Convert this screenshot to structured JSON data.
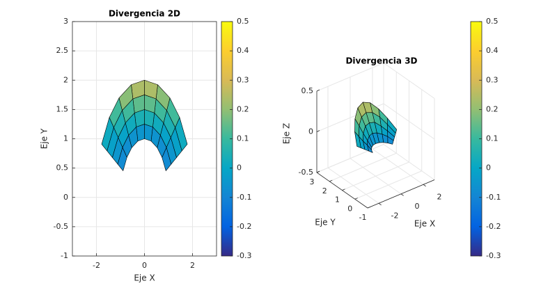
{
  "chart_data": [
    {
      "type": "surface2d",
      "title": "Divergencia 2D",
      "xlabel": "Eje X",
      "ylabel": "Eje Y",
      "xlim": [
        -3,
        3
      ],
      "ylim": [
        -1,
        3
      ],
      "xticks": [
        -2,
        0,
        2
      ],
      "yticks": [
        -1,
        -0.5,
        0,
        0.5,
        1,
        1.5,
        2,
        2.5,
        3
      ],
      "grid": true,
      "r": [
        1,
        1.25,
        1.5,
        1.75,
        2
      ],
      "theta": [
        27,
        43,
        58,
        74,
        90,
        106,
        122,
        137,
        153
      ],
      "z": [
        [
          -0.1,
          -0.1,
          -0.1,
          -0.1,
          -0.1,
          -0.1,
          -0.1,
          -0.1,
          -0.1
        ],
        [
          -0.08,
          -0.05,
          -0.03,
          -0.01,
          0,
          -0.01,
          -0.03,
          -0.05,
          -0.08
        ],
        [
          -0.06,
          -0.01,
          0.04,
          0.09,
          0.1,
          0.09,
          0.04,
          -0.01,
          -0.06
        ],
        [
          -0.04,
          0.04,
          0.12,
          0.18,
          0.2,
          0.18,
          0.12,
          0.04,
          -0.04
        ],
        [
          -0.02,
          0.09,
          0.19,
          0.27,
          0.3,
          0.27,
          0.19,
          0.09,
          -0.02
        ]
      ],
      "clim": [
        -0.3,
        0.5
      ],
      "cticks": [
        -0.3,
        -0.2,
        -0.1,
        0,
        0.1,
        0.2,
        0.3,
        0.4,
        0.5
      ],
      "colormap": "parula"
    },
    {
      "type": "surface3d",
      "title": "Divergencia 3D",
      "xlabel": "Eje X",
      "ylabel": "Eje Y",
      "zlabel": "Eje Z",
      "xlim": [
        -3,
        3
      ],
      "ylim": [
        -1,
        3
      ],
      "zlim": [
        -0.5,
        0.5
      ],
      "xticks": [
        -2,
        0,
        2
      ],
      "yticks": [
        -1,
        0,
        1,
        2,
        3
      ],
      "zticks": [
        -0.5,
        0,
        0.5
      ],
      "grid": true,
      "r": [
        1,
        1.25,
        1.5,
        1.75,
        2
      ],
      "theta": [
        27,
        43,
        58,
        74,
        90,
        106,
        122,
        137,
        153
      ],
      "z": [
        [
          -0.1,
          -0.1,
          -0.1,
          -0.1,
          -0.1,
          -0.1,
          -0.1,
          -0.1,
          -0.1
        ],
        [
          -0.08,
          -0.05,
          -0.03,
          -0.01,
          0,
          -0.01,
          -0.03,
          -0.05,
          -0.08
        ],
        [
          -0.06,
          -0.01,
          0.04,
          0.09,
          0.1,
          0.09,
          0.04,
          -0.01,
          -0.06
        ],
        [
          -0.04,
          0.04,
          0.12,
          0.18,
          0.2,
          0.18,
          0.12,
          0.04,
          -0.04
        ],
        [
          -0.02,
          0.09,
          0.19,
          0.27,
          0.3,
          0.27,
          0.19,
          0.09,
          -0.02
        ]
      ],
      "clim": [
        -0.3,
        0.5
      ],
      "cticks": [
        -0.3,
        -0.2,
        -0.1,
        0,
        0.1,
        0.2,
        0.3,
        0.4,
        0.5
      ],
      "colormap": "parula"
    }
  ]
}
